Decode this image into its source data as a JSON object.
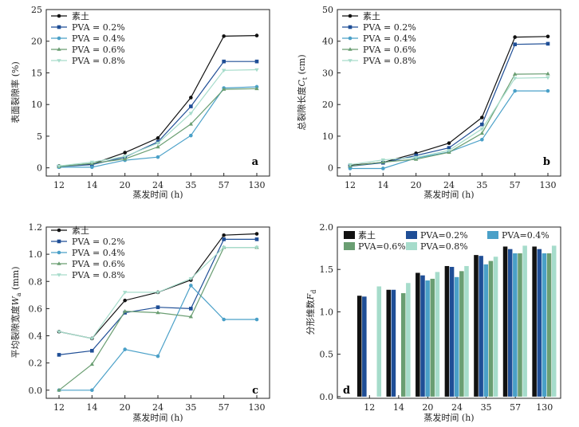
{
  "palette": {
    "sutu": "#111111",
    "p02": "#1f4e96",
    "p04": "#4aa0c8",
    "p06": "#6a9e72",
    "p08": "#a6dccb"
  },
  "legend": {
    "sutu": "素土",
    "p02": "PVA = 0.2%",
    "p04": "PVA = 0.4%",
    "p06": "PVA = 0.6%",
    "p08": "PVA = 0.8%",
    "bar_p02": "PVA=0.2%",
    "bar_p04": "PVA=0.4%",
    "bar_p06": "PVA=0.6%",
    "bar_p08": "PVA=0.8%"
  },
  "chart_data": [
    {
      "id": "a",
      "type": "line",
      "panel_label": "a",
      "xlabel": "蒸发时间 (h)",
      "ylabel": "表面裂隙率 (%)",
      "categories": [
        "12",
        "14",
        "20",
        "24",
        "35",
        "57",
        "130"
      ],
      "ylim": [
        0,
        25
      ],
      "yticks": [
        "0",
        "5",
        "10",
        "15",
        "20",
        "25"
      ],
      "legend_position": "top-left",
      "series": [
        {
          "name": "素土",
          "key": "sutu",
          "values": [
            0.3,
            0.6,
            2.4,
            4.7,
            11.1,
            20.8,
            20.9
          ]
        },
        {
          "name": "PVA = 0.2%",
          "key": "p02",
          "values": [
            0.2,
            0.5,
            1.7,
            4.1,
            9.7,
            16.8,
            16.8
          ]
        },
        {
          "name": "PVA = 0.4%",
          "key": "p04",
          "values": [
            0.1,
            0.1,
            1.2,
            1.7,
            5.1,
            12.6,
            12.8
          ]
        },
        {
          "name": "PVA = 0.6%",
          "key": "p06",
          "values": [
            0.2,
            0.7,
            1.4,
            3.3,
            6.9,
            12.4,
            12.5
          ]
        },
        {
          "name": "PVA = 0.8%",
          "key": "p08",
          "values": [
            0.3,
            0.9,
            1.8,
            3.9,
            8.6,
            15.4,
            15.5
          ]
        }
      ]
    },
    {
      "id": "b",
      "type": "line",
      "panel_label": "b",
      "xlabel": "蒸发时间 (h)",
      "ylabel_main": "总裂隙长度",
      "ylabel_var": "C",
      "ylabel_sub": "t",
      "ylabel_unit": " (cm)",
      "categories": [
        "12",
        "14",
        "20",
        "24",
        "35",
        "57",
        "130"
      ],
      "ylim": [
        0,
        50
      ],
      "yticks": [
        "0",
        "10",
        "20",
        "30",
        "40",
        "50"
      ],
      "legend_position": "top-left",
      "series": [
        {
          "name": "素土",
          "key": "sutu",
          "values": [
            0.8,
            1.7,
            4.6,
            7.8,
            15.9,
            41.3,
            41.5
          ]
        },
        {
          "name": "PVA = 0.2%",
          "key": "p02",
          "values": [
            0.5,
            1.6,
            3.9,
            6.3,
            13.7,
            39.0,
            39.2
          ]
        },
        {
          "name": "PVA = 0.4%",
          "key": "p04",
          "values": [
            -0.2,
            -0.2,
            3.1,
            5.0,
            8.9,
            24.3,
            24.3
          ]
        },
        {
          "name": "PVA = 0.6%",
          "key": "p06",
          "values": [
            0.6,
            1.8,
            2.7,
            4.9,
            10.9,
            29.6,
            29.7
          ]
        },
        {
          "name": "PVA = 0.8%",
          "key": "p08",
          "values": [
            1.0,
            2.5,
            3.3,
            5.5,
            12.3,
            28.3,
            28.5
          ]
        }
      ]
    },
    {
      "id": "c",
      "type": "line",
      "panel_label": "c",
      "xlabel": "蒸发时间 (h)",
      "ylabel_main": "平均裂隙宽度",
      "ylabel_var": "W",
      "ylabel_sub": "a",
      "ylabel_unit": " (mm)",
      "categories": [
        "12",
        "14",
        "20",
        "24",
        "35",
        "57",
        "130"
      ],
      "ylim": [
        0,
        1.2
      ],
      "yticks": [
        "0.0",
        "0.2",
        "0.4",
        "0.6",
        "0.8",
        "1.0",
        "1.2"
      ],
      "legend_position": "top-left",
      "series": [
        {
          "name": "素土",
          "key": "sutu",
          "values": [
            0.43,
            0.38,
            0.66,
            0.72,
            0.81,
            1.14,
            1.15
          ]
        },
        {
          "name": "PVA = 0.2%",
          "key": "p02",
          "values": [
            0.26,
            0.29,
            0.57,
            0.61,
            0.6,
            1.11,
            1.11
          ]
        },
        {
          "name": "PVA = 0.4%",
          "key": "p04",
          "values": [
            0.0,
            0.0,
            0.3,
            0.25,
            0.77,
            0.52,
            0.52
          ]
        },
        {
          "name": "PVA = 0.6%",
          "key": "p06",
          "values": [
            0.0,
            0.19,
            0.58,
            0.57,
            0.54,
            1.05,
            1.05
          ]
        },
        {
          "name": "PVA = 0.8%",
          "key": "p08",
          "values": [
            0.43,
            0.38,
            0.72,
            0.72,
            0.82,
            1.05,
            1.05
          ]
        }
      ]
    },
    {
      "id": "d",
      "type": "bar",
      "panel_label": "d",
      "xlabel": "蒸发时间 (h)",
      "ylabel_main": "分形维数",
      "ylabel_var": "F",
      "ylabel_sub": "d",
      "categories": [
        "12",
        "14",
        "20",
        "24",
        "35",
        "57",
        "130"
      ],
      "ylim": [
        0,
        2.0
      ],
      "yticks": [
        "0.0",
        "0.5",
        "1.0",
        "1.5",
        "2.0"
      ],
      "legend_position": "top",
      "series": [
        {
          "name": "素土",
          "key": "sutu",
          "values": [
            1.19,
            1.26,
            1.46,
            1.54,
            1.67,
            1.77,
            1.77
          ]
        },
        {
          "name": "PVA=0.2%",
          "key": "p02",
          "values": [
            1.18,
            1.26,
            1.43,
            1.53,
            1.66,
            1.74,
            1.74
          ]
        },
        {
          "name": "PVA=0.4%",
          "key": "p04",
          "values": [
            null,
            null,
            1.37,
            1.41,
            1.56,
            1.69,
            1.69
          ]
        },
        {
          "name": "PVA=0.6%",
          "key": "p06",
          "values": [
            null,
            1.22,
            1.39,
            1.48,
            1.6,
            1.69,
            1.69
          ]
        },
        {
          "name": "PVA=0.8%",
          "key": "p08",
          "values": [
            1.3,
            1.34,
            1.47,
            1.54,
            1.65,
            1.78,
            1.78
          ]
        }
      ]
    }
  ]
}
